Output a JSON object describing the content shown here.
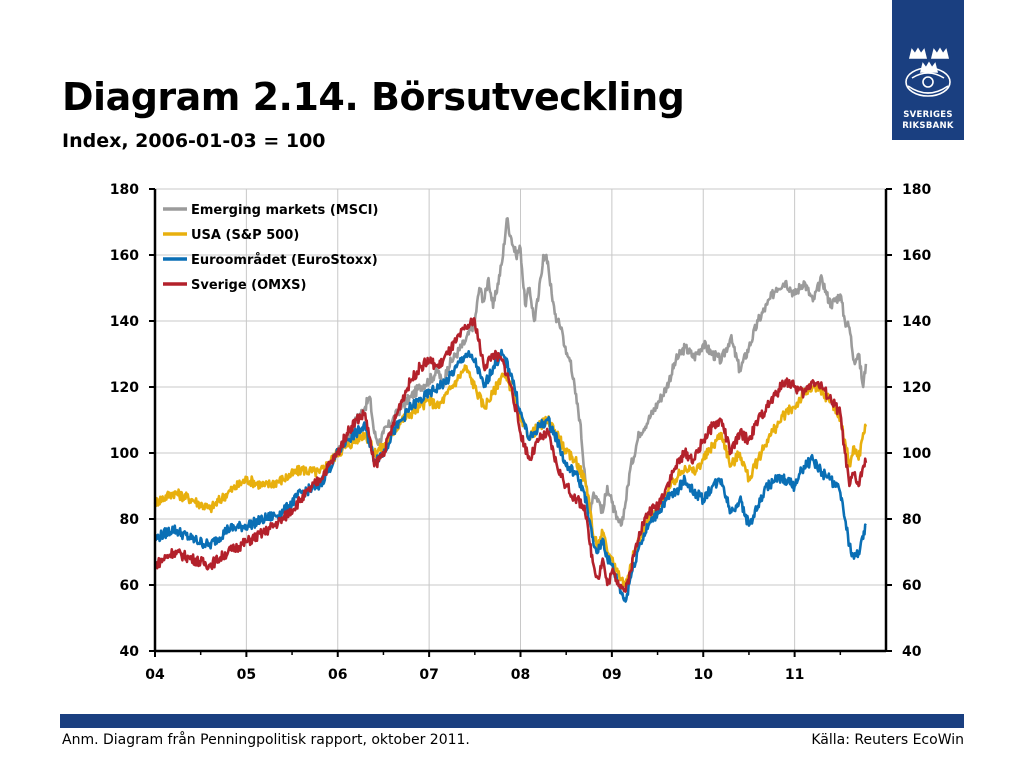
{
  "title": "Diagram 2.14. Börsutveckling",
  "subtitle": "Index, 2006-01-03 = 100",
  "logo": {
    "line1": "SVERIGES",
    "line2": "RIKSBANK",
    "color": "#1a3f80"
  },
  "footer": {
    "note": "Anm. Diagram från Penningpolitisk rapport, oktober 2011.",
    "source": "Källa: Reuters EcoWin",
    "bar_color": "#1a3f80"
  },
  "chart_data": {
    "type": "line",
    "title": "",
    "xlabel": "",
    "ylabel": "",
    "xlim": [
      2004.0,
      2012.0
    ],
    "ylim": [
      40,
      180
    ],
    "yticks": [
      40,
      60,
      80,
      100,
      120,
      140,
      160,
      180
    ],
    "xticks": [
      {
        "value": 2004,
        "label": "04"
      },
      {
        "value": 2005,
        "label": "05"
      },
      {
        "value": 2006,
        "label": "06"
      },
      {
        "value": 2007,
        "label": "07"
      },
      {
        "value": 2008,
        "label": "08"
      },
      {
        "value": 2009,
        "label": "09"
      },
      {
        "value": 2010,
        "label": "10"
      },
      {
        "value": 2011,
        "label": "11"
      }
    ],
    "grid": true,
    "dual_y_axis": true,
    "legend_position": "top-left",
    "series": [
      {
        "name": "Emerging markets (MSCI)",
        "color": "#9b9b9b",
        "x": [
          2006.0,
          2006.1,
          2006.2,
          2006.3,
          2006.35,
          2006.4,
          2006.45,
          2006.5,
          2006.6,
          2006.7,
          2006.8,
          2006.9,
          2007.0,
          2007.1,
          2007.15,
          2007.2,
          2007.3,
          2007.4,
          2007.5,
          2007.55,
          2007.6,
          2007.65,
          2007.7,
          2007.8,
          2007.85,
          2007.9,
          2007.95,
          2008.0,
          2008.05,
          2008.1,
          2008.15,
          2008.2,
          2008.25,
          2008.3,
          2008.35,
          2008.4,
          2008.45,
          2008.5,
          2008.55,
          2008.6,
          2008.65,
          2008.7,
          2008.75,
          2008.8,
          2008.85,
          2008.9,
          2008.95,
          2009.0,
          2009.05,
          2009.1,
          2009.15,
          2009.2,
          2009.3,
          2009.4,
          2009.5,
          2009.6,
          2009.7,
          2009.8,
          2009.9,
          2010.0,
          2010.1,
          2010.2,
          2010.3,
          2010.4,
          2010.5,
          2010.6,
          2010.7,
          2010.8,
          2010.9,
          2011.0,
          2011.1,
          2011.2,
          2011.3,
          2011.35,
          2011.4,
          2011.5,
          2011.55,
          2011.6,
          2011.65,
          2011.7,
          2011.75,
          2011.78
        ],
        "values": [
          100,
          104,
          110,
          114,
          117,
          106,
          103,
          106,
          110,
          114,
          117,
          120,
          122,
          125,
          120,
          126,
          130,
          134,
          140,
          150,
          146,
          153,
          144,
          158,
          171,
          165,
          160,
          162,
          145,
          150,
          140,
          148,
          160,
          158,
          146,
          140,
          138,
          130,
          128,
          118,
          110,
          95,
          82,
          88,
          86,
          82,
          90,
          85,
          80,
          78,
          85,
          95,
          106,
          110,
          115,
          120,
          128,
          132,
          129,
          133,
          130,
          128,
          135,
          125,
          132,
          140,
          145,
          150,
          152,
          148,
          152,
          146,
          153,
          148,
          145,
          148,
          140,
          138,
          128,
          130,
          120,
          127
        ]
      },
      {
        "name": "USA (S&P 500)",
        "color": "#e8b00e",
        "x": [
          2004.0,
          2004.2,
          2004.4,
          2004.6,
          2004.8,
          2005.0,
          2005.2,
          2005.4,
          2005.6,
          2005.8,
          2006.0,
          2006.1,
          2006.2,
          2006.3,
          2006.4,
          2006.5,
          2006.6,
          2006.7,
          2006.8,
          2006.9,
          2007.0,
          2007.1,
          2007.2,
          2007.3,
          2007.4,
          2007.5,
          2007.6,
          2007.7,
          2007.8,
          2007.9,
          2008.0,
          2008.1,
          2008.2,
          2008.3,
          2008.4,
          2008.5,
          2008.6,
          2008.7,
          2008.75,
          2008.8,
          2008.85,
          2008.9,
          2008.95,
          2009.0,
          2009.1,
          2009.15,
          2009.2,
          2009.3,
          2009.4,
          2009.5,
          2009.6,
          2009.7,
          2009.8,
          2009.9,
          2010.0,
          2010.1,
          2010.2,
          2010.3,
          2010.4,
          2010.5,
          2010.6,
          2010.7,
          2010.8,
          2010.9,
          2011.0,
          2011.1,
          2011.2,
          2011.3,
          2011.4,
          2011.5,
          2011.55,
          2011.6,
          2011.65,
          2011.7,
          2011.75,
          2011.78
        ],
        "values": [
          85,
          88,
          86,
          83,
          88,
          92,
          90,
          92,
          95,
          94,
          100,
          102,
          104,
          106,
          100,
          102,
          106,
          110,
          112,
          114,
          116,
          114,
          118,
          122,
          126,
          120,
          114,
          118,
          124,
          120,
          110,
          105,
          108,
          110,
          106,
          100,
          98,
          92,
          86,
          74,
          72,
          76,
          70,
          68,
          62,
          60,
          66,
          74,
          80,
          82,
          88,
          92,
          96,
          94,
          98,
          102,
          106,
          96,
          100,
          92,
          98,
          104,
          108,
          112,
          114,
          118,
          120,
          118,
          116,
          110,
          104,
          96,
          102,
          98,
          106,
          108
        ]
      },
      {
        "name": "Euroområdet (EuroStoxx)",
        "color": "#0a6fb5",
        "x": [
          2004.0,
          2004.2,
          2004.4,
          2004.6,
          2004.8,
          2005.0,
          2005.2,
          2005.4,
          2005.6,
          2005.8,
          2006.0,
          2006.1,
          2006.2,
          2006.3,
          2006.4,
          2006.5,
          2006.6,
          2006.7,
          2006.8,
          2006.9,
          2007.0,
          2007.1,
          2007.2,
          2007.3,
          2007.4,
          2007.5,
          2007.6,
          2007.7,
          2007.8,
          2007.9,
          2008.0,
          2008.1,
          2008.2,
          2008.3,
          2008.4,
          2008.5,
          2008.6,
          2008.7,
          2008.75,
          2008.8,
          2008.85,
          2008.9,
          2008.95,
          2009.0,
          2009.1,
          2009.15,
          2009.2,
          2009.3,
          2009.4,
          2009.5,
          2009.6,
          2009.7,
          2009.8,
          2009.9,
          2010.0,
          2010.1,
          2010.2,
          2010.3,
          2010.4,
          2010.5,
          2010.6,
          2010.7,
          2010.8,
          2010.9,
          2011.0,
          2011.1,
          2011.2,
          2011.3,
          2011.4,
          2011.5,
          2011.55,
          2011.6,
          2011.65,
          2011.7,
          2011.75,
          2011.78
        ],
        "values": [
          74,
          77,
          74,
          72,
          77,
          78,
          80,
          82,
          88,
          90,
          100,
          104,
          106,
          108,
          98,
          100,
          106,
          110,
          114,
          116,
          118,
          120,
          122,
          126,
          130,
          128,
          120,
          126,
          130,
          124,
          112,
          104,
          108,
          110,
          104,
          96,
          94,
          88,
          80,
          72,
          70,
          74,
          68,
          66,
          58,
          55,
          62,
          72,
          78,
          82,
          86,
          88,
          92,
          88,
          86,
          90,
          92,
          82,
          86,
          78,
          84,
          90,
          92,
          92,
          90,
          96,
          98,
          94,
          92,
          88,
          80,
          72,
          68,
          70,
          74,
          78
        ]
      },
      {
        "name": "Sverige (OMXS)",
        "color": "#b3212b",
        "x": [
          2004.0,
          2004.2,
          2004.4,
          2004.6,
          2004.8,
          2005.0,
          2005.2,
          2005.4,
          2005.6,
          2005.8,
          2006.0,
          2006.1,
          2006.2,
          2006.3,
          2006.4,
          2006.5,
          2006.6,
          2006.7,
          2006.8,
          2006.9,
          2007.0,
          2007.1,
          2007.2,
          2007.3,
          2007.4,
          2007.5,
          2007.6,
          2007.7,
          2007.8,
          2007.9,
          2008.0,
          2008.1,
          2008.2,
          2008.3,
          2008.4,
          2008.5,
          2008.6,
          2008.7,
          2008.75,
          2008.8,
          2008.85,
          2008.9,
          2008.95,
          2009.0,
          2009.1,
          2009.15,
          2009.2,
          2009.3,
          2009.4,
          2009.5,
          2009.6,
          2009.7,
          2009.8,
          2009.9,
          2010.0,
          2010.1,
          2010.2,
          2010.3,
          2010.4,
          2010.5,
          2010.6,
          2010.7,
          2010.8,
          2010.9,
          2011.0,
          2011.1,
          2011.2,
          2011.3,
          2011.4,
          2011.5,
          2011.55,
          2011.6,
          2011.65,
          2011.7,
          2011.75,
          2011.78
        ],
        "values": [
          66,
          70,
          68,
          66,
          70,
          73,
          76,
          80,
          86,
          92,
          100,
          106,
          110,
          112,
          96,
          100,
          108,
          116,
          122,
          126,
          128,
          126,
          130,
          134,
          138,
          140,
          126,
          130,
          128,
          120,
          106,
          98,
          104,
          106,
          96,
          90,
          86,
          84,
          74,
          66,
          62,
          68,
          60,
          64,
          60,
          58,
          64,
          76,
          82,
          84,
          90,
          96,
          100,
          98,
          104,
          108,
          110,
          100,
          106,
          104,
          110,
          114,
          118,
          122,
          120,
          118,
          122,
          120,
          116,
          112,
          100,
          90,
          94,
          90,
          96,
          97
        ]
      }
    ]
  }
}
